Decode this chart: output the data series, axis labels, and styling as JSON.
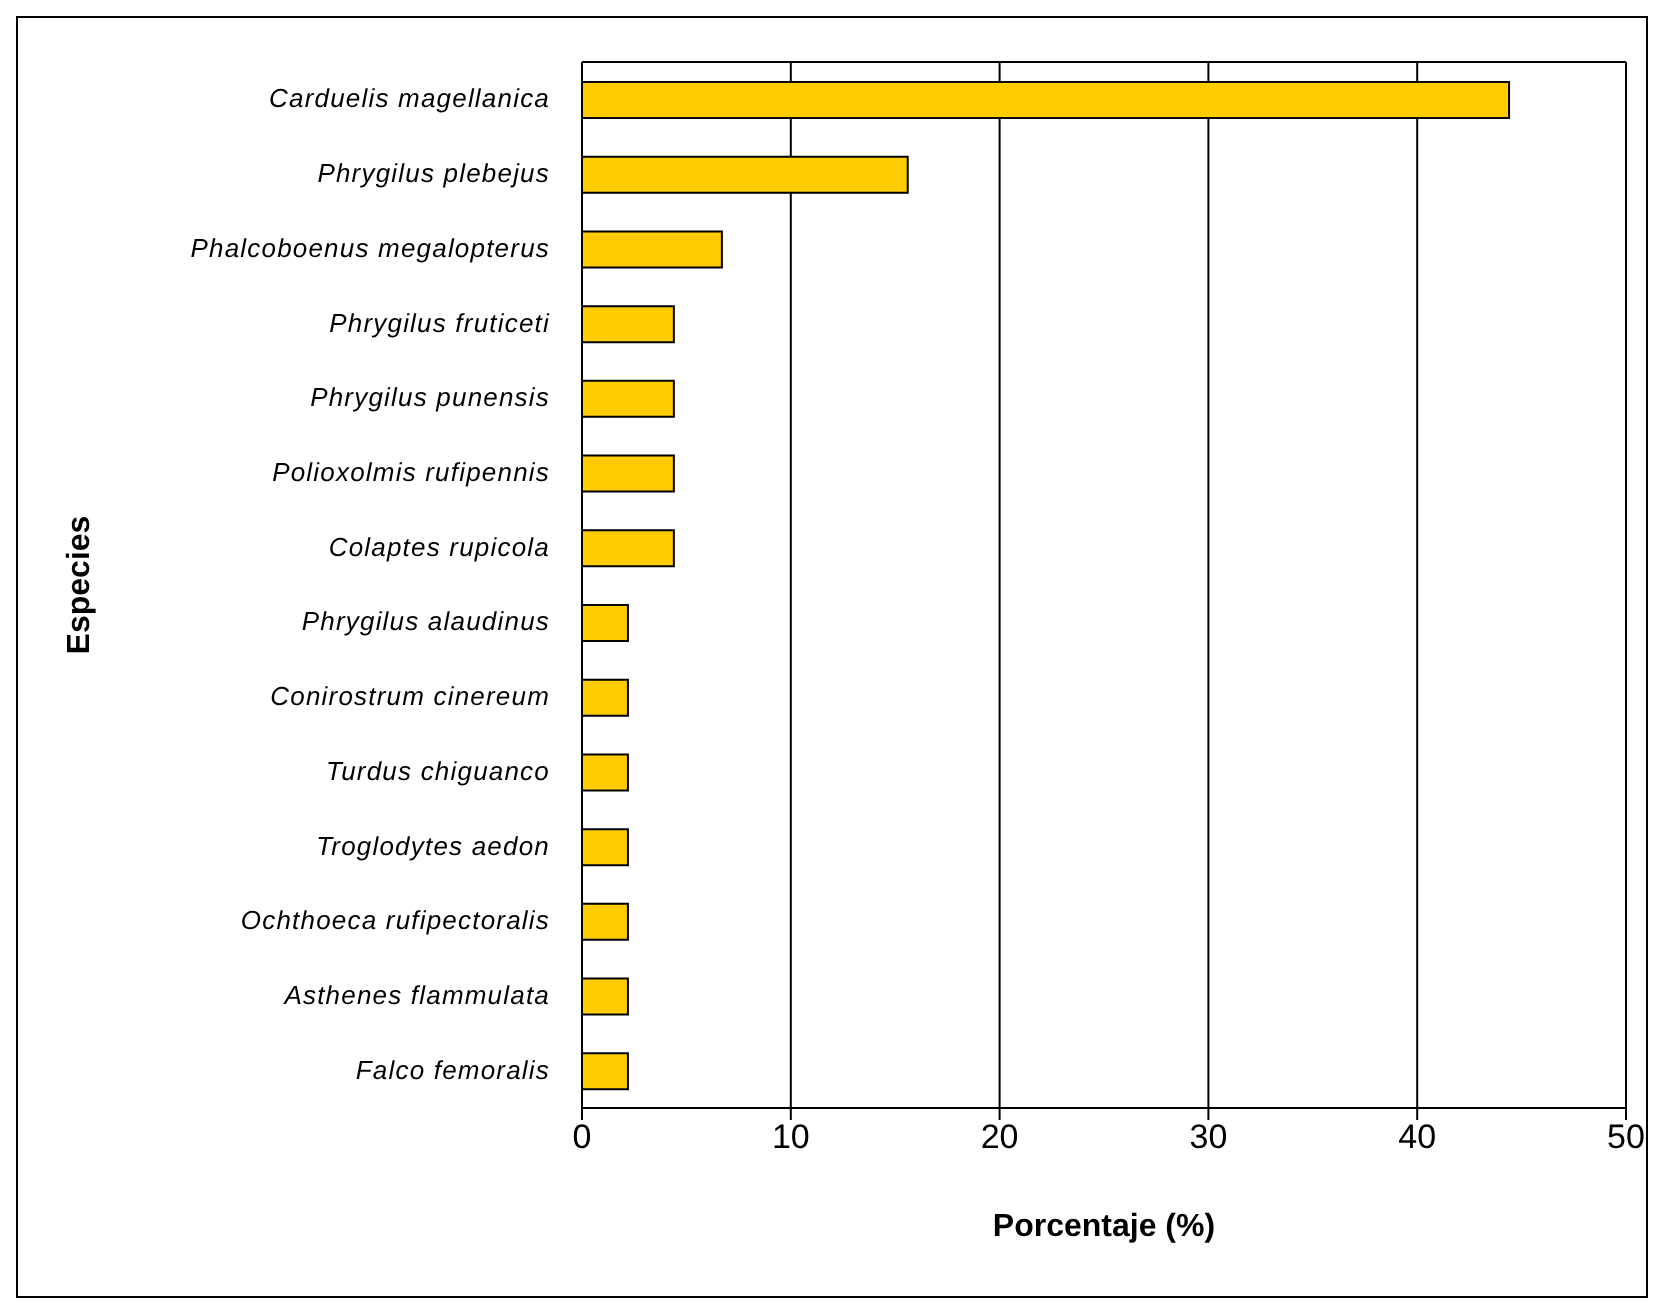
{
  "chart_data": {
    "type": "bar",
    "orientation": "horizontal",
    "xlabel": "Porcentaje (%)",
    "ylabel": "Especies",
    "categories": [
      "Carduelis magellanica",
      "Phrygilus plebejus",
      "Phalcoboenus megalopterus",
      "Phrygilus fruticeti",
      "Phrygilus punensis",
      "Polioxolmis rufipennis",
      "Colaptes rupicola",
      "Phrygilus alaudinus",
      "Conirostrum cinereum",
      "Turdus chiguanco",
      "Troglodytes aedon",
      "Ochthoeca rufipectoralis",
      "Asthenes flammulata",
      "Falco femoralis"
    ],
    "values": [
      44.4,
      15.6,
      6.7,
      4.4,
      4.4,
      4.4,
      4.4,
      2.2,
      2.2,
      2.2,
      2.2,
      2.2,
      2.2,
      2.2
    ],
    "color": "#ffcc00",
    "xlim": [
      0,
      50
    ],
    "xticks": [
      0,
      10,
      20,
      30,
      40,
      50
    ],
    "grid": "x"
  }
}
